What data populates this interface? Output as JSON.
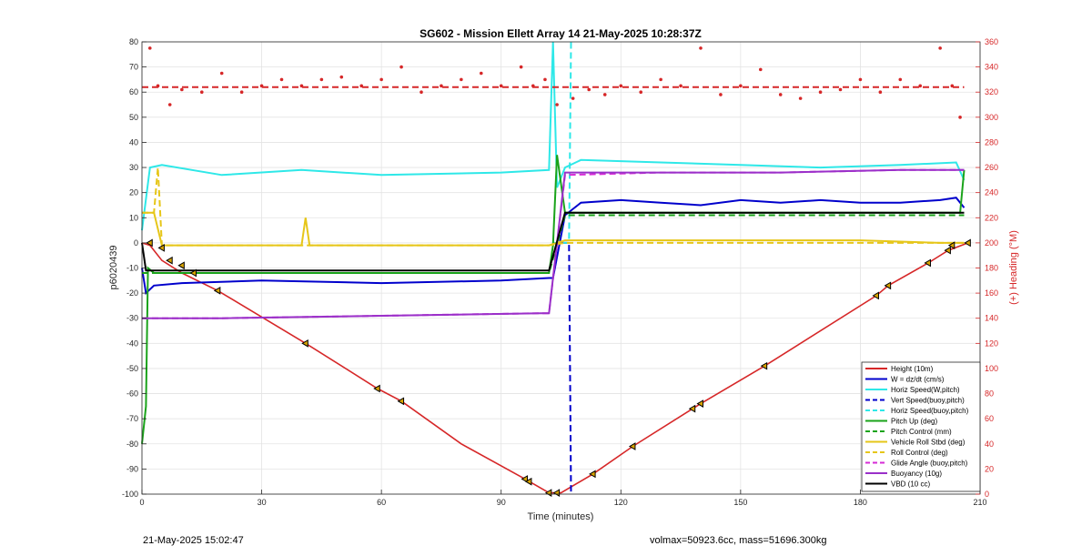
{
  "chart_data": {
    "type": "line",
    "title": "SG602 - Mission Ellett Array 14 21-May-2025 10:28:37Z",
    "xlabel": "Time (minutes)",
    "ylabel": "p6020439",
    "y2label": "(+) Heading (°M)",
    "xlim": [
      0,
      210
    ],
    "ylim": [
      -100,
      80
    ],
    "y2lim": [
      0,
      360
    ],
    "xticks": [
      "0",
      "30",
      "60",
      "90",
      "120",
      "150",
      "180",
      "210"
    ],
    "yticks": [
      "-100",
      "-90",
      "-80",
      "-70",
      "-60",
      "-50",
      "-40",
      "-30",
      "-20",
      "-10",
      "0",
      "10",
      "20",
      "30",
      "40",
      "50",
      "60",
      "70",
      "80"
    ],
    "y2ticks": [
      "0",
      "20",
      "40",
      "60",
      "80",
      "100",
      "120",
      "140",
      "160",
      "180",
      "200",
      "220",
      "240",
      "260",
      "280",
      "300",
      "320",
      "340",
      "360"
    ],
    "legend_position": "bottom-right",
    "series": [
      {
        "name": "Height (10m)",
        "color": "#d62728",
        "style": "solid",
        "x": [
          0,
          2,
          5,
          10,
          19,
          41,
          59,
          65,
          80,
          96,
          102,
          105,
          113,
          123,
          138,
          140,
          156,
          184,
          187,
          197,
          202,
          207
        ],
        "y": [
          0,
          -1,
          -7,
          -12,
          -19,
          -40,
          -58,
          -63,
          -80,
          -94,
          -99.5,
          -99.5,
          -92,
          -81,
          -66,
          -64,
          -49,
          -21,
          -17,
          -8,
          -3,
          0
        ]
      },
      {
        "name": "W = dz/dt (cm/s)",
        "color": "#0000cc",
        "style": "solid",
        "x": [
          0,
          1,
          3,
          10,
          30,
          60,
          90,
          102,
          103,
          106,
          110,
          120,
          130,
          140,
          150,
          160,
          170,
          180,
          190,
          200,
          204,
          206
        ],
        "y": [
          -10,
          -20,
          -17,
          -16,
          -15,
          -16,
          -15,
          -14,
          -14,
          11,
          16,
          17,
          16,
          15,
          17,
          16,
          17,
          16,
          16,
          17,
          18,
          14
        ]
      },
      {
        "name": "Horiz Speed(W,pitch)",
        "color": "#2ee8e8",
        "style": "solid",
        "x": [
          0,
          2,
          5,
          20,
          40,
          60,
          90,
          102,
          103,
          104,
          106,
          110,
          130,
          150,
          170,
          190,
          204,
          206
        ],
        "y": [
          5,
          30,
          31,
          27,
          29,
          27,
          28,
          29,
          80,
          22,
          30,
          33,
          32,
          31,
          30,
          31,
          32,
          25
        ]
      },
      {
        "name": "Vert Speed(buoy,pitch)",
        "color": "#0000cc",
        "style": "dash",
        "x": [
          105,
          107,
          107.5
        ],
        "y": [
          0,
          0,
          -100
        ]
      },
      {
        "name": "Horiz Speed(buoy,pitch)",
        "color": "#2ee8e8",
        "style": "dash",
        "x": [
          103,
          107,
          107.5
        ],
        "y": [
          0,
          0,
          80
        ]
      },
      {
        "name": "Pitch Up (deg)",
        "color": "#1aa31a",
        "style": "solid",
        "x": [
          0,
          1,
          1.5,
          3,
          10,
          40,
          90,
          102,
          103,
          104,
          106,
          205,
          206
        ],
        "y": [
          -80,
          -65,
          -10,
          -12,
          -12,
          -12,
          -12,
          -12,
          -1,
          35,
          12,
          12,
          29
        ]
      },
      {
        "name": "Pitch Control (mm)",
        "color": "#1aa31a",
        "style": "dash",
        "x": [
          0,
          3,
          100,
          102,
          106,
          206
        ],
        "y": [
          -12,
          -12,
          -12,
          -12,
          11,
          11
        ]
      },
      {
        "name": "Vehicle Roll Stbd (deg)",
        "color": "#e6c619",
        "style": "solid",
        "x": [
          0,
          3,
          5,
          8,
          40,
          41,
          42,
          70,
          100,
          102,
          106,
          140,
          180,
          200,
          206
        ],
        "y": [
          12,
          12,
          -1,
          -1,
          -1,
          10,
          -1,
          -1,
          -1,
          -1,
          1,
          1,
          1,
          0,
          0
        ]
      },
      {
        "name": "Roll Control (deg)",
        "color": "#e6c619",
        "style": "dash",
        "x": [
          0,
          3,
          4,
          5,
          40,
          100,
          102,
          106,
          140,
          180,
          206
        ],
        "y": [
          12,
          12,
          30,
          -1,
          -1,
          -1,
          -1,
          0,
          0,
          0,
          0
        ]
      },
      {
        "name": "Glide Angle (buoy,pitch)",
        "color": "#d62bd6",
        "style": "dash",
        "x": [
          0,
          2,
          20,
          60,
          100,
          102,
          106,
          130,
          160,
          190,
          206
        ],
        "y": [
          -30,
          -30,
          -30,
          -29,
          -28,
          -28,
          27,
          28,
          28,
          29,
          29
        ]
      },
      {
        "name": "Buoyancy (10g)",
        "color": "#9a30c9",
        "style": "solid",
        "x": [
          0,
          2,
          20,
          60,
          100,
          102,
          106,
          130,
          160,
          190,
          206
        ],
        "y": [
          -30,
          -30,
          -30,
          -29,
          -28,
          -28,
          28,
          28,
          28,
          29,
          29
        ]
      },
      {
        "name": "VBD (10 cc)",
        "color": "#000000",
        "style": "solid",
        "x": [
          0,
          1,
          2,
          100,
          102,
          106,
          206
        ],
        "y": [
          0,
          -11,
          -11,
          -11,
          -11,
          12,
          12
        ]
      },
      {
        "name": "Heading",
        "color": "#d62728",
        "style": "dots",
        "axis": "right",
        "x": [
          2,
          4,
          7,
          10,
          15,
          20,
          25,
          30,
          35,
          40,
          45,
          50,
          55,
          60,
          65,
          70,
          75,
          80,
          85,
          90,
          95,
          98,
          101,
          104,
          108,
          112,
          116,
          120,
          125,
          130,
          135,
          140,
          145,
          150,
          155,
          160,
          165,
          170,
          175,
          180,
          185,
          190,
          195,
          200,
          203,
          205
        ],
        "y": [
          355,
          325,
          310,
          322,
          320,
          335,
          320,
          325,
          330,
          325,
          330,
          332,
          325,
          330,
          340,
          320,
          325,
          330,
          335,
          325,
          340,
          325,
          330,
          310,
          315,
          322,
          318,
          325,
          320,
          330,
          325,
          355,
          318,
          325,
          338,
          318,
          315,
          320,
          322,
          330,
          320,
          330,
          325,
          355,
          325,
          300
        ]
      },
      {
        "name": "Heading mean",
        "color": "#d62728",
        "style": "dash",
        "axis": "right",
        "x": [
          0,
          206
        ],
        "y": [
          324,
          324
        ]
      }
    ],
    "markers": {
      "x": [
        2,
        5,
        7,
        10,
        13,
        19,
        41,
        59,
        65,
        96,
        97,
        102,
        104,
        113,
        123,
        138,
        140,
        156,
        184,
        187,
        197,
        202,
        203,
        207
      ],
      "y": [
        0,
        -2,
        -7,
        -9,
        -12,
        -19,
        -40,
        -58,
        -63,
        -94,
        -95,
        -99.5,
        -99.5,
        -92,
        -81,
        -66,
        -64,
        -49,
        -21,
        -17,
        -8,
        -3,
        -1,
        0
      ]
    },
    "grid": true
  },
  "footer": {
    "left": "21-May-2025 15:02:47",
    "right": "volmax=50923.6cc, mass=51696.300kg"
  }
}
